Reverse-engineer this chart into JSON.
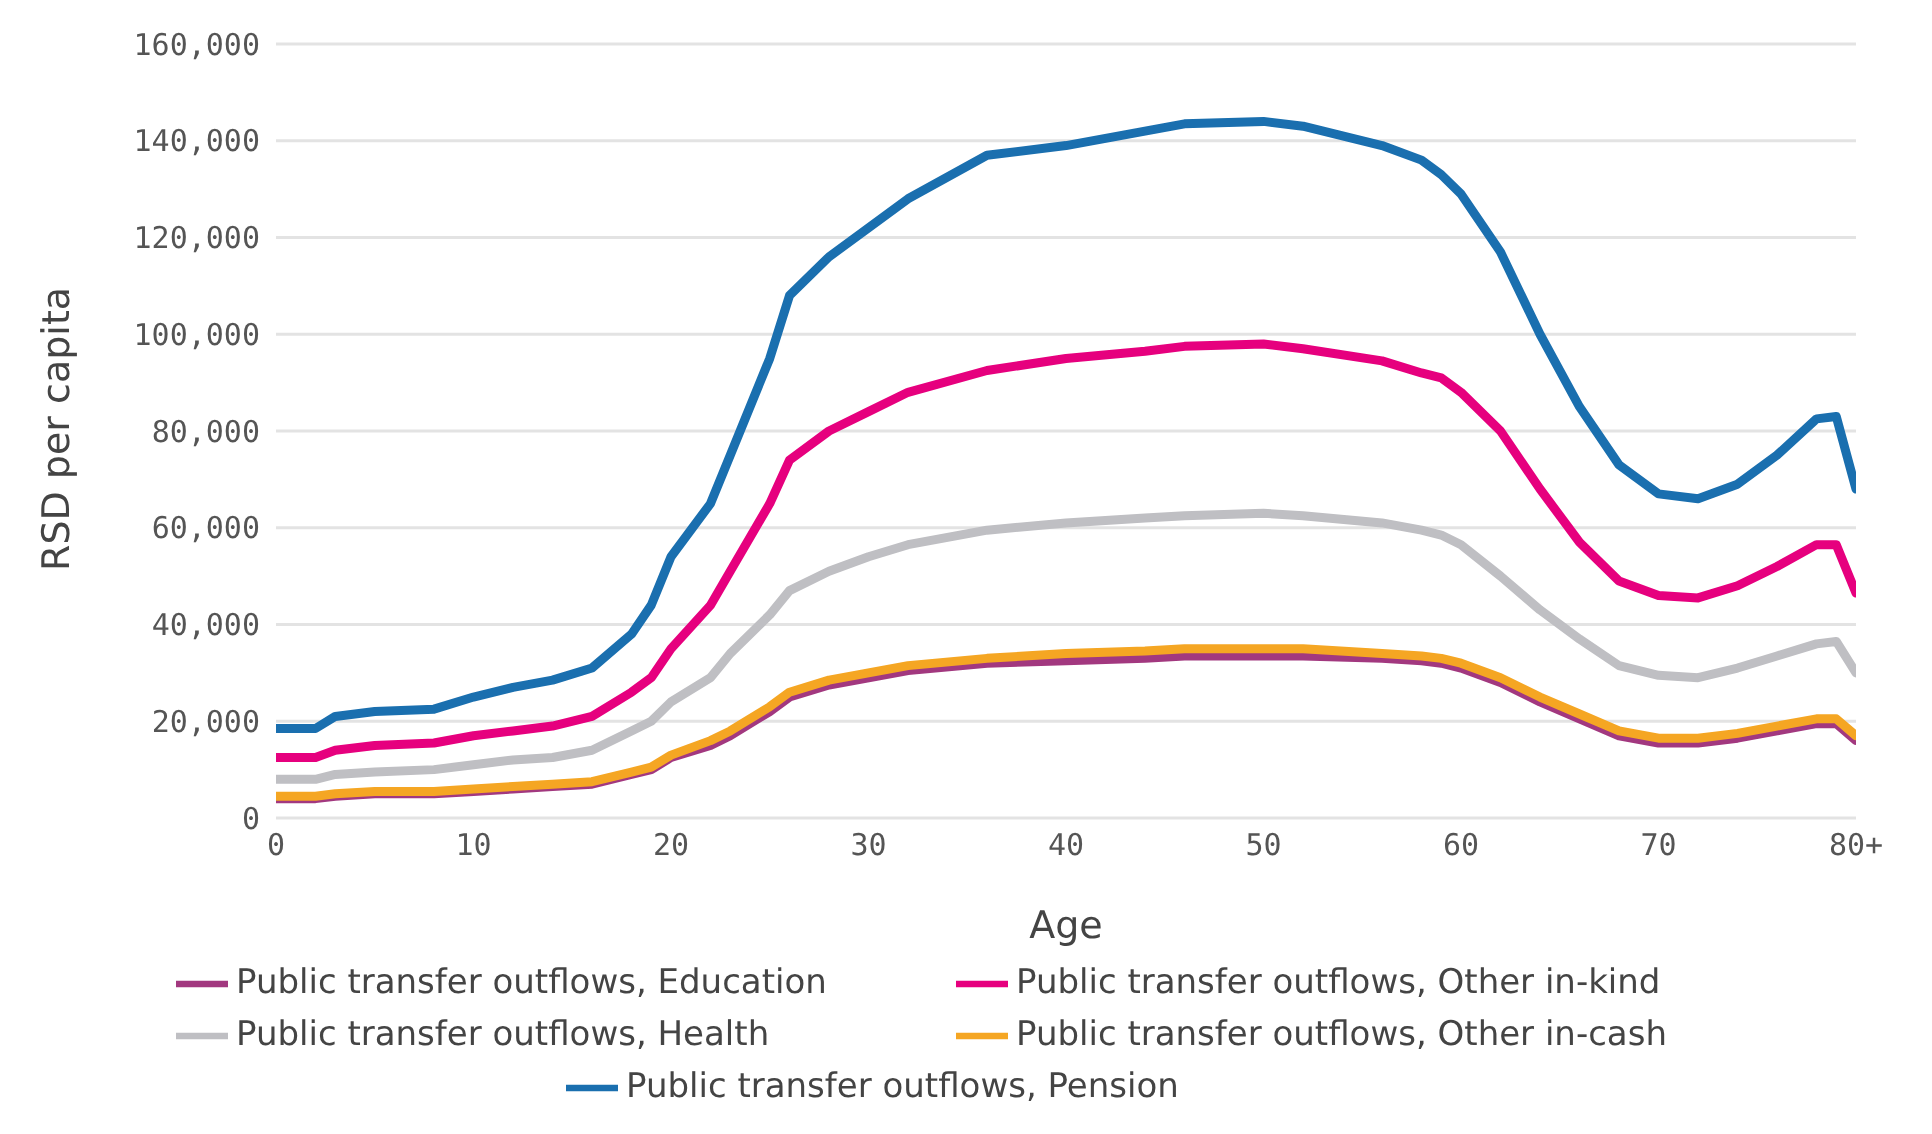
{
  "chart_data": {
    "type": "line",
    "xlabel": "Age",
    "ylabel": "RSD per capita",
    "xlim": [
      0,
      80
    ],
    "xticks": [
      0,
      10,
      20,
      30,
      40,
      50,
      60,
      70,
      {
        "value": 80,
        "label": "80+"
      }
    ],
    "ylim": [
      0,
      160000
    ],
    "yticks": [
      0,
      {
        "value": 20000,
        "label": "20,000"
      },
      {
        "value": 40000,
        "label": "40,000"
      },
      {
        "value": 60000,
        "label": "60,000"
      },
      {
        "value": 80000,
        "label": "80,000"
      },
      {
        "value": 100000,
        "label": "100,000"
      },
      {
        "value": 120000,
        "label": "120,000"
      },
      {
        "value": 140000,
        "label": "140,000"
      },
      {
        "value": 160000,
        "label": "160,000"
      }
    ],
    "grid": "y",
    "legend": "bottom",
    "marker": "none",
    "line_style": "solid",
    "x": [
      0,
      2,
      3,
      5,
      8,
      10,
      12,
      14,
      16,
      18,
      19,
      20,
      22,
      23,
      25,
      26,
      28,
      30,
      32,
      36,
      40,
      44,
      46,
      50,
      52,
      56,
      58,
      59,
      60,
      62,
      64,
      66,
      68,
      70,
      72,
      74,
      76,
      78,
      79,
      80
    ],
    "series": [
      {
        "name": "Public transfer outflows, Education",
        "color": "#a2387f",
        "values": [
          4000,
          4000,
          4500,
          5000,
          5000,
          5500,
          6000,
          6500,
          7000,
          9000,
          10000,
          12500,
          15000,
          17000,
          22000,
          25000,
          27500,
          29000,
          30500,
          32000,
          32500,
          33000,
          33500,
          33500,
          33500,
          33000,
          32500,
          32000,
          31000,
          28000,
          24000,
          20500,
          17000,
          15500,
          15500,
          16500,
          18000,
          19500,
          19500,
          16000
        ]
      },
      {
        "name": "Public transfer outflows, Other in-kind",
        "color": "#e6007e",
        "values": [
          12500,
          12500,
          14000,
          15000,
          15500,
          17000,
          18000,
          19000,
          21000,
          26000,
          29000,
          35000,
          44000,
          51000,
          65000,
          74000,
          80000,
          84000,
          88000,
          92500,
          95000,
          96500,
          97500,
          98000,
          97000,
          94500,
          92000,
          91000,
          88000,
          80000,
          68000,
          57000,
          49000,
          46000,
          45500,
          48000,
          52000,
          56500,
          56500,
          46500
        ]
      },
      {
        "name": "Public transfer outflows, Health",
        "color": "#bfbfc3",
        "values": [
          8000,
          8000,
          9000,
          9500,
          10000,
          11000,
          12000,
          12500,
          14000,
          18000,
          20000,
          24000,
          29000,
          34000,
          42000,
          47000,
          51000,
          54000,
          56500,
          59500,
          61000,
          62000,
          62500,
          63000,
          62500,
          61000,
          59500,
          58500,
          56500,
          50000,
          43000,
          37000,
          31500,
          29500,
          29000,
          31000,
          33500,
          36000,
          36500,
          30000
        ]
      },
      {
        "name": "Public transfer outflows, Other in-cash",
        "color": "#f5a623",
        "values": [
          4500,
          4500,
          5000,
          5500,
          5500,
          6000,
          6500,
          7000,
          7500,
          9500,
          10500,
          13000,
          16000,
          18000,
          23000,
          26000,
          28500,
          30000,
          31500,
          33000,
          34000,
          34500,
          35000,
          35000,
          35000,
          34000,
          33500,
          33000,
          32000,
          29000,
          25000,
          21500,
          18000,
          16500,
          16500,
          17500,
          19000,
          20500,
          20500,
          17000
        ]
      },
      {
        "name": "Public transfer outflows, Pension",
        "color": "#1a6faf",
        "values": [
          18500,
          18500,
          21000,
          22000,
          22500,
          25000,
          27000,
          28500,
          31000,
          38000,
          44000,
          54000,
          65000,
          75000,
          95000,
          108000,
          116000,
          122000,
          128000,
          137000,
          139000,
          142000,
          143500,
          144000,
          143000,
          139000,
          136000,
          133000,
          129000,
          117000,
          100000,
          85000,
          73000,
          67000,
          66000,
          69000,
          75000,
          82500,
          83000,
          68000
        ]
      }
    ]
  }
}
